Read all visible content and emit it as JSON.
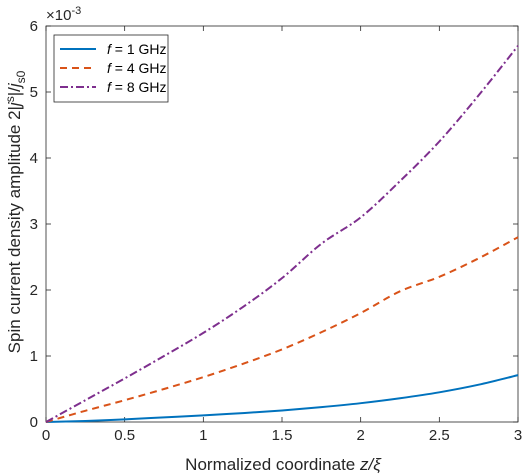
{
  "chart_data": {
    "type": "line",
    "xlabel_prefix": "Normalized coordinate ",
    "xlabel_var": "z/ξ",
    "ylabel_prefix": "Spin current density amplitude 2|",
    "ylabel_var": "j",
    "ylabel_sup": "s",
    "ylabel_mid": "|/",
    "ylabel_var2": "j",
    "ylabel_sub": "s0",
    "y_exponent_base": "×10",
    "y_exponent_power": "-3",
    "xlim": [
      0,
      3
    ],
    "ylim": [
      0,
      6
    ],
    "xticks": [
      "0",
      "0.5",
      "1",
      "1.5",
      "2",
      "2.5",
      "3"
    ],
    "yticks": [
      "0",
      "1",
      "2",
      "3",
      "4",
      "5",
      "6"
    ],
    "grid": false,
    "legend_position": "top-left",
    "x": [
      0,
      0.25,
      0.5,
      0.75,
      1.0,
      1.25,
      1.5,
      1.75,
      2.0,
      2.25,
      2.5,
      2.75,
      3.0
    ],
    "series": [
      {
        "name": "f = 1 GHz",
        "name_var": "f",
        "name_rest": " = 1 GHz",
        "color": "#0072BD",
        "dash": "solid",
        "values": [
          0,
          0.015,
          0.04,
          0.07,
          0.1,
          0.135,
          0.175,
          0.225,
          0.285,
          0.36,
          0.45,
          0.565,
          0.71
        ]
      },
      {
        "name": "f = 4 GHz",
        "name_var": "f",
        "name_rest": " = 4 GHz",
        "color": "#D95319",
        "dash": "dashed",
        "values": [
          0,
          0.17,
          0.33,
          0.5,
          0.68,
          0.88,
          1.1,
          1.36,
          1.65,
          1.98,
          2.2,
          2.48,
          2.8
        ]
      },
      {
        "name": "f = 8 GHz",
        "name_var": "f",
        "name_rest": " = 8 GHz",
        "color": "#7E2F8E",
        "dash": "dashdot",
        "values": [
          0,
          0.33,
          0.66,
          1.0,
          1.35,
          1.74,
          2.18,
          2.7,
          3.1,
          3.65,
          4.25,
          4.95,
          5.7
        ]
      }
    ]
  }
}
